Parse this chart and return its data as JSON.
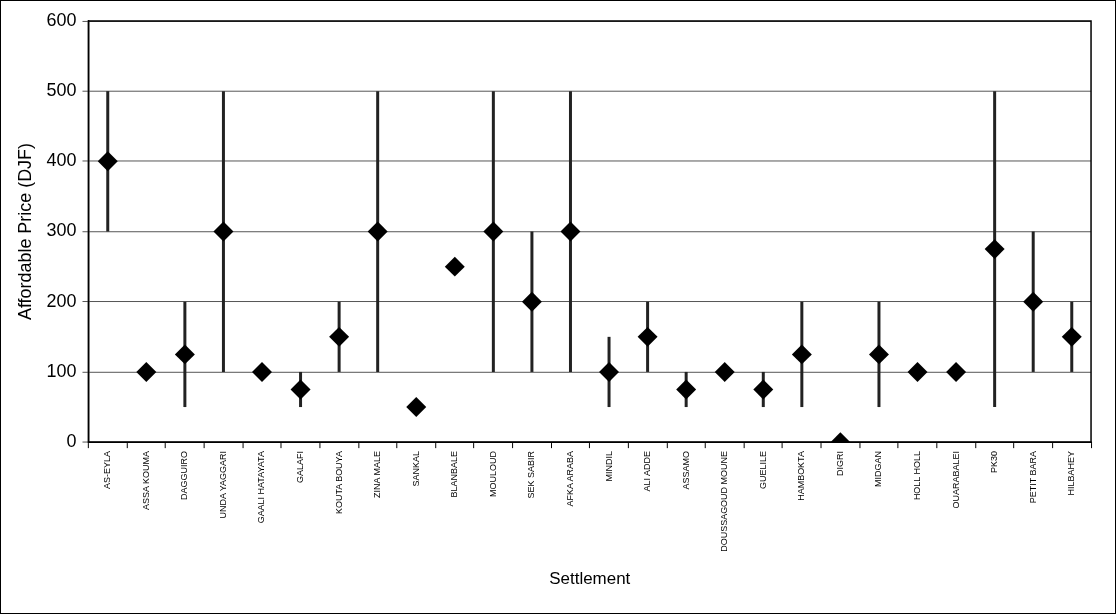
{
  "chart_data": {
    "type": "scatter",
    "xlabel": "Settlement",
    "ylabel": "Affordable Price (DJF)",
    "categories": [
      "AS-EYLA",
      "ASSA KOUMA",
      "DAGGUIRO",
      "UNDA YAGGARI",
      "GAALI HATAYATA",
      "GALAFI",
      "KOUTA BOUYA",
      "ZINA MALE",
      "SANKAL",
      "BLANBALE",
      "MOULOUD",
      "SEK SABIR",
      "AFKA ARABA",
      "MINDIL",
      "ALI ADDE",
      "ASSAMO",
      "DOUSSAGOUD MOUNE",
      "GUELILE",
      "HAMBOKTA",
      "DIGRI",
      "MIDGAN",
      "HOLL HOLL",
      "OUARABALEI",
      "PK30",
      "PETIT BARA",
      "HILBAHEY"
    ],
    "series": [
      {
        "color": "#000000",
        "values": [
          400,
          100,
          125,
          300,
          100,
          75,
          150,
          300,
          50,
          250,
          300,
          200,
          300,
          100,
          150,
          75,
          100,
          75,
          125,
          0,
          125,
          100,
          100,
          275,
          200,
          150
        ],
        "errors": [
          [
            300,
            500
          ],
          null,
          [
            50,
            200
          ],
          [
            100,
            500
          ],
          null,
          [
            50,
            100
          ],
          [
            100,
            200
          ],
          [
            100,
            500
          ],
          null,
          null,
          [
            100,
            500
          ],
          [
            100,
            300
          ],
          [
            100,
            500
          ],
          [
            50,
            150
          ],
          [
            100,
            200
          ],
          [
            50,
            100
          ],
          null,
          [
            50,
            100
          ],
          [
            50,
            200
          ],
          null,
          [
            50,
            200
          ],
          null,
          null,
          [
            50,
            500
          ],
          [
            100,
            300
          ],
          [
            100,
            200
          ]
        ]
      }
    ],
    "ylim": [
      0,
      600
    ],
    "yticks": [
      0,
      100,
      200,
      300,
      400,
      500,
      600
    ],
    "grid": "y",
    "legend": false,
    "marker": "diamond"
  }
}
